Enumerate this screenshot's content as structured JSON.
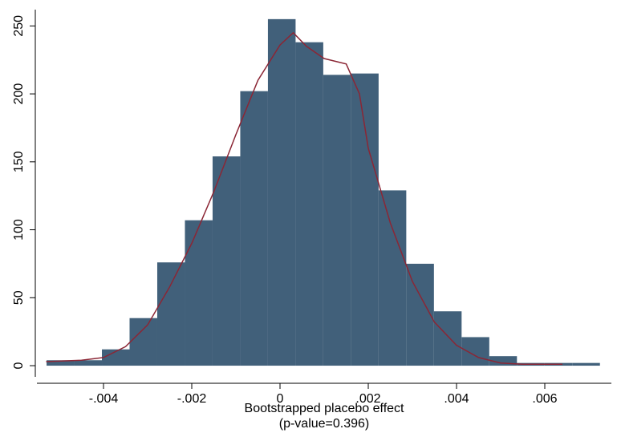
{
  "chart_data": {
    "type": "histogram",
    "xlabel_lines": [
      "Bootstrapped placebo effect",
      "(p-value=0.396)"
    ],
    "bins": [
      -0.00529,
      -0.004663,
      -0.004036,
      -0.003409,
      -0.002782,
      -0.002155,
      -0.001528,
      -0.000901,
      -0.000274,
      0.000353,
      0.00098,
      0.001607,
      0.002234,
      0.002861,
      0.003488,
      0.004115,
      0.004742,
      0.005369,
      0.005996,
      0.006623,
      0.00725
    ],
    "counts": [
      4,
      4,
      12,
      35,
      76,
      107,
      154,
      202,
      255,
      238,
      214,
      215,
      129,
      75,
      40,
      21,
      7,
      2,
      2,
      2
    ],
    "color": "#41607a",
    "density": {
      "color": "#8b2635",
      "x": [
        -0.0053,
        -0.0045,
        -0.004,
        -0.0035,
        -0.003,
        -0.0025,
        -0.002,
        -0.0015,
        -0.001,
        -0.0005,
        0,
        0.0003,
        0.0006,
        0.001,
        0.0015,
        0.0018,
        0.002,
        0.0025,
        0.003,
        0.0035,
        0.004,
        0.0045,
        0.005,
        0.0055,
        0.006,
        0.0064
      ],
      "y": [
        3,
        4,
        6,
        14,
        30,
        58,
        90,
        128,
        170,
        210,
        236,
        245,
        235,
        226,
        222,
        200,
        160,
        105,
        62,
        32,
        15,
        6,
        2,
        1,
        1,
        1
      ]
    },
    "xlim": [
      -0.0055,
      0.0075
    ],
    "xticks": [
      {
        "value": -0.004,
        "label": "-.004"
      },
      {
        "value": -0.002,
        "label": "-.002"
      },
      0,
      {
        "value": 0.002,
        "label": ".002"
      },
      {
        "value": 0.004,
        "label": ".004"
      },
      {
        "value": 0.006,
        "label": ".006"
      }
    ],
    "ylim": [
      -8,
      262
    ],
    "yticks": [
      0,
      50,
      100,
      150,
      200,
      250
    ]
  }
}
